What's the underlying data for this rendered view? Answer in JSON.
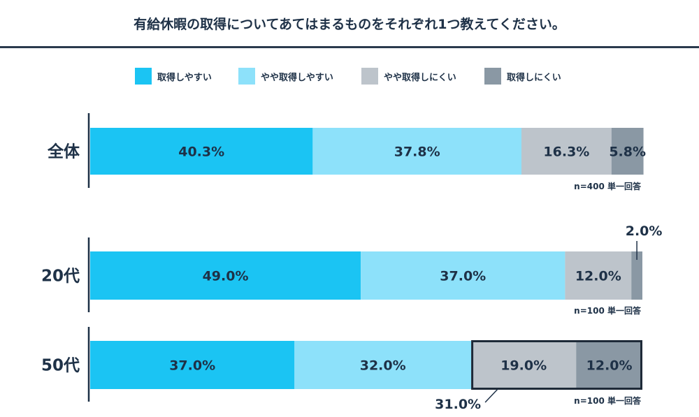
{
  "title": "有給休暇の取得についてあてはまるものをそれぞれ1つ教えてください。",
  "colors": {
    "series": [
      "#1bc4f3",
      "#8de1fa",
      "#bdc4cb",
      "#8a98a4"
    ],
    "text": "#1e3147",
    "axis": "#1e3147"
  },
  "legend": [
    {
      "label": "取得しやすい"
    },
    {
      "label": "やや取得しやすい"
    },
    {
      "label": "やや取得しにくい"
    },
    {
      "label": "取得しにくい"
    }
  ],
  "chart_data": {
    "type": "bar",
    "orientation": "horizontal",
    "stacked": true,
    "percent_scale": [
      0,
      100
    ],
    "categories": [
      "全体",
      "20代",
      "50代"
    ],
    "series": [
      {
        "name": "取得しやすい",
        "values": [
          40.3,
          49.0,
          37.0
        ],
        "labels": [
          "40.3%",
          "49.0%",
          "37.0%"
        ]
      },
      {
        "name": "やや取得しやすい",
        "values": [
          37.8,
          37.0,
          32.0
        ],
        "labels": [
          "37.8%",
          "37.0%",
          "32.0%"
        ]
      },
      {
        "name": "やや取得しにくい",
        "values": [
          16.3,
          12.0,
          19.0
        ],
        "labels": [
          "16.3%",
          "12.0%",
          "19.0%"
        ]
      },
      {
        "name": "取得しにくい",
        "values": [
          5.8,
          2.0,
          12.0
        ],
        "labels": [
          "5.8%",
          "2.0%",
          "12.0%"
        ]
      }
    ],
    "sample_notes": [
      "n=400 単一回答",
      "n=100 単一回答",
      "n=100 単一回答"
    ],
    "annotation": {
      "category": "50代",
      "series_names": [
        "やや取得しにくい",
        "取得しにくい"
      ],
      "label": "31.0%"
    },
    "legend_position": "top"
  }
}
